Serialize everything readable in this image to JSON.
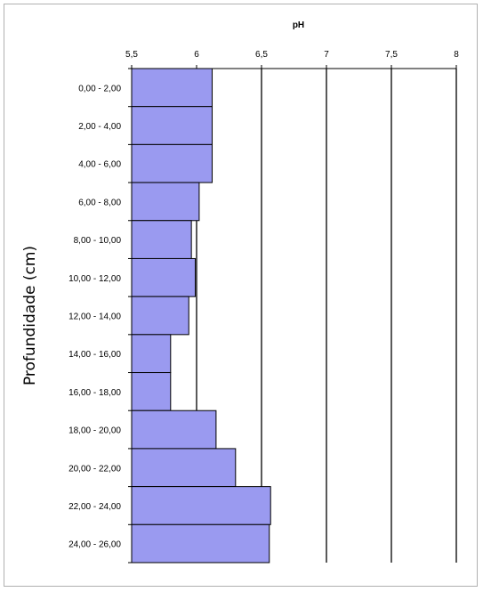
{
  "chart_data": {
    "type": "bar",
    "orientation": "horizontal",
    "title": "pH",
    "xlabel": "pH",
    "ylabel": "Profundidade (cm)",
    "xlim": [
      5.5,
      8
    ],
    "xticks": [
      "5,5",
      "6",
      "6,5",
      "7",
      "7,5",
      "8"
    ],
    "categories": [
      "0,00 - 2,00",
      "2,00 - 4,00",
      "4,00 - 6,00",
      "6,00 - 8,00",
      "8,00 - 10,00",
      "10,00 - 12,00",
      "12,00 - 14,00",
      "14,00 - 16,00",
      "16,00 - 18,00",
      "18,00 - 20,00",
      "20,00 - 22,00",
      "22,00 - 24,00",
      "24,00 - 26,00"
    ],
    "values": [
      6.12,
      6.12,
      6.12,
      6.02,
      5.96,
      5.99,
      5.94,
      5.8,
      5.8,
      6.15,
      6.3,
      6.57,
      6.56
    ],
    "x_axis_position": "top",
    "grid": "vertical major gridlines",
    "legend": "none",
    "colors": {
      "bar_fill": "#9a9af0",
      "bar_stroke": "#000000",
      "grid": "#000000"
    }
  }
}
